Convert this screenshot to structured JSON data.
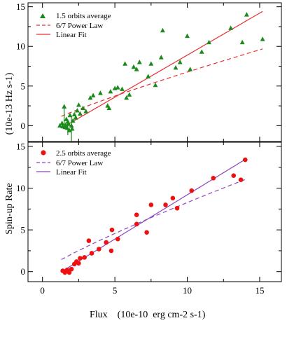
{
  "chart_data": {
    "type": "scatter",
    "xlabel": "Flux    (10e-10  erg cm-2 s-1)",
    "ylabel_main": "Spin-up Rate",
    "ylabel_units": "(10e-13 Hz s-1)",
    "xlim": [
      -1.0,
      16.5
    ],
    "x_ticks": [
      0,
      5,
      10,
      15
    ],
    "panels": [
      {
        "id": "top",
        "ylim": [
          -2.0,
          15.5
        ],
        "y_ticks": [
          0,
          5,
          10,
          15
        ],
        "series": [
          {
            "name": "1.5 orbits average",
            "kind": "points",
            "marker": "triangle",
            "color": "#1a8a1a",
            "points": [
              [
                1.2,
                0.0
              ],
              [
                1.35,
                0.3
              ],
              [
                1.4,
                -0.1
              ],
              [
                1.5,
                2.4
              ],
              [
                1.55,
                -0.2
              ],
              [
                1.6,
                0.1
              ],
              [
                1.65,
                0.8
              ],
              [
                1.7,
                -0.3
              ],
              [
                1.75,
                0.5
              ],
              [
                1.8,
                0.2
              ],
              [
                1.85,
                -0.6
              ],
              [
                1.9,
                1.3
              ],
              [
                2.0,
                0.0
              ],
              [
                2.05,
                -0.4
              ],
              [
                2.1,
                0.6
              ],
              [
                2.2,
                1.4
              ],
              [
                2.3,
                1.0
              ],
              [
                2.4,
                1.9
              ],
              [
                2.5,
                2.6
              ],
              [
                2.6,
                1.5
              ],
              [
                2.8,
                2.2
              ],
              [
                3.0,
                1.8
              ],
              [
                3.3,
                3.5
              ],
              [
                3.5,
                3.8
              ],
              [
                4.0,
                4.1
              ],
              [
                4.5,
                2.5
              ],
              [
                4.6,
                2.2
              ],
              [
                4.7,
                4.3
              ],
              [
                5.0,
                4.7
              ],
              [
                5.2,
                4.8
              ],
              [
                5.5,
                4.6
              ],
              [
                5.7,
                7.8
              ],
              [
                5.8,
                3.5
              ],
              [
                6.0,
                3.9
              ],
              [
                6.3,
                7.4
              ],
              [
                6.5,
                7.1
              ],
              [
                6.7,
                8.0
              ],
              [
                7.3,
                6.2
              ],
              [
                7.5,
                7.8
              ],
              [
                7.8,
                5.1
              ],
              [
                8.2,
                8.6
              ],
              [
                8.3,
                12.0
              ],
              [
                9.2,
                7.3
              ],
              [
                9.5,
                8.0
              ],
              [
                10.0,
                11.3
              ],
              [
                10.2,
                7.1
              ],
              [
                11.0,
                9.3
              ],
              [
                11.5,
                10.5
              ],
              [
                13.0,
                12.3
              ],
              [
                13.8,
                10.5
              ],
              [
                14.1,
                14.0
              ],
              [
                15.2,
                10.9
              ]
            ],
            "error_bars": [
              {
                "x": 1.5,
                "low": 0.1,
                "high": 2.4
              },
              {
                "x": 1.75,
                "low": -1.2,
                "high": 0.5
              },
              {
                "x": 2.0,
                "low": -2.0,
                "high": 1.3
              }
            ]
          },
          {
            "name": "6/7 Power Law",
            "kind": "curve",
            "style": "dashed",
            "color": "#e83030",
            "func": "power",
            "a": 0.94,
            "p": 0.857,
            "x_start": 1.3,
            "x_end": 15.2
          },
          {
            "name": "Linear Fit",
            "kind": "curve",
            "style": "solid",
            "color": "#e83030",
            "func": "linear",
            "m": 1.06,
            "b": -1.7,
            "x_start": 1.3,
            "x_end": 15.2
          }
        ]
      },
      {
        "id": "bottom",
        "ylim": [
          -1.2,
          15.5
        ],
        "y_ticks": [
          0,
          5,
          10,
          15
        ],
        "series": [
          {
            "name": "2.5 orbits average",
            "kind": "points",
            "marker": "circle",
            "color": "#ee1111",
            "points": [
              [
                1.4,
                0.1
              ],
              [
                1.55,
                -0.1
              ],
              [
                1.7,
                0.2
              ],
              [
                1.85,
                -0.1
              ],
              [
                2.0,
                0.3
              ],
              [
                2.2,
                0.9
              ],
              [
                2.35,
                1.2
              ],
              [
                2.5,
                1.0
              ],
              [
                2.6,
                1.6
              ],
              [
                2.9,
                1.7
              ],
              [
                3.2,
                3.7
              ],
              [
                3.4,
                2.2
              ],
              [
                3.9,
                2.7
              ],
              [
                4.4,
                3.5
              ],
              [
                4.75,
                2.5
              ],
              [
                4.8,
                5.0
              ],
              [
                5.2,
                3.9
              ],
              [
                6.5,
                5.7
              ],
              [
                6.5,
                6.8
              ],
              [
                7.2,
                4.7
              ],
              [
                7.5,
                8.0
              ],
              [
                8.5,
                8.0
              ],
              [
                9.0,
                8.8
              ],
              [
                9.3,
                7.6
              ],
              [
                10.3,
                9.7
              ],
              [
                11.8,
                11.2
              ],
              [
                13.2,
                11.5
              ],
              [
                13.7,
                11.0
              ],
              [
                14.0,
                13.4
              ]
            ]
          },
          {
            "name": "6/7 Power Law",
            "kind": "curve",
            "style": "dashed",
            "color": "#8e44c0",
            "func": "power",
            "a": 1.15,
            "p": 0.857,
            "x_start": 1.3,
            "x_end": 14.0
          },
          {
            "name": "Linear Fit",
            "kind": "curve",
            "style": "solid",
            "color": "#8e44c0",
            "func": "linear",
            "m": 1.06,
            "b": -1.4,
            "x_start": 1.3,
            "x_end": 14.0
          }
        ]
      }
    ]
  }
}
